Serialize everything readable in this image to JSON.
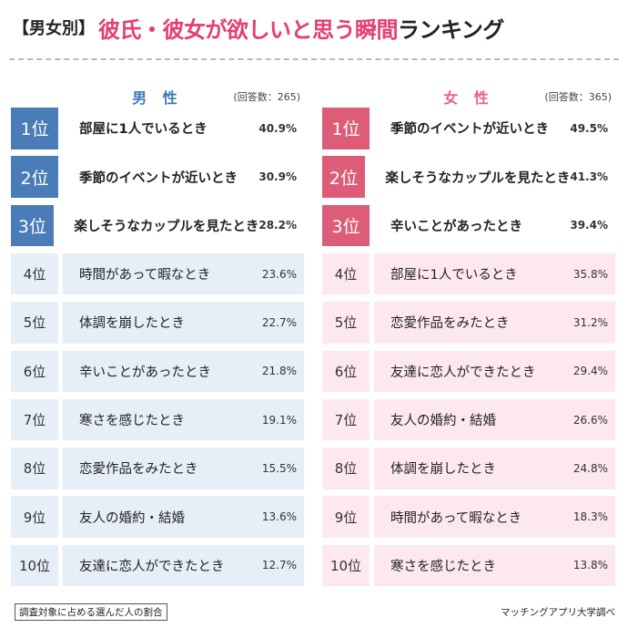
{
  "title": {
    "bracket": "【男女別】",
    "main": "彼氏・彼女が欲しいと思う瞬間",
    "tail": "ランキング"
  },
  "male": {
    "label": "男 性",
    "respondents": "(回答数：265)",
    "highlight_color": "#4a7cb8",
    "row_color": "#e6eef8"
  },
  "female": {
    "label": "女 性",
    "respondents": "(回答数：365)",
    "highlight_color": "#dd5d79",
    "row_color": "#fde8f2"
  },
  "chart_data": [
    {
      "type": "table",
      "title": "男性",
      "unit": "%",
      "rows": [
        {
          "rank": "1位",
          "label": "部屋に1人でいるとき",
          "value": 40.9,
          "display": "40.9%"
        },
        {
          "rank": "2位",
          "label": "季節のイベントが近いとき",
          "value": 30.9,
          "display": "30.9%"
        },
        {
          "rank": "3位",
          "label": "楽しそうなカップルを見たとき",
          "value": 28.2,
          "display": "28.2%"
        },
        {
          "rank": "4位",
          "label": "時間があって暇なとき",
          "value": 23.6,
          "display": "23.6%"
        },
        {
          "rank": "5位",
          "label": "体調を崩したとき",
          "value": 22.7,
          "display": "22.7%"
        },
        {
          "rank": "6位",
          "label": "辛いことがあったとき",
          "value": 21.8,
          "display": "21.8%"
        },
        {
          "rank": "7位",
          "label": "寒さを感じたとき",
          "value": 19.1,
          "display": "19.1%"
        },
        {
          "rank": "8位",
          "label": "恋愛作品をみたとき",
          "value": 15.5,
          "display": "15.5%"
        },
        {
          "rank": "9位",
          "label": "友人の婚約・結婚",
          "value": 13.6,
          "display": "13.6%"
        },
        {
          "rank": "10位",
          "label": "友達に恋人ができたとき",
          "value": 12.7,
          "display": "12.7%"
        }
      ]
    },
    {
      "type": "table",
      "title": "女性",
      "unit": "%",
      "rows": [
        {
          "rank": "1位",
          "label": "季節のイベントが近いとき",
          "value": 49.5,
          "display": "49.5%"
        },
        {
          "rank": "2位",
          "label": "楽しそうなカップルを見たとき",
          "value": 41.3,
          "display": "41.3%"
        },
        {
          "rank": "3位",
          "label": "辛いことがあったとき",
          "value": 39.4,
          "display": "39.4%"
        },
        {
          "rank": "4位",
          "label": "部屋に1人でいるとき",
          "value": 35.8,
          "display": "35.8%"
        },
        {
          "rank": "5位",
          "label": "恋愛作品をみたとき",
          "value": 31.2,
          "display": "31.2%"
        },
        {
          "rank": "6位",
          "label": "友達に恋人ができたとき",
          "value": 29.4,
          "display": "29.4%"
        },
        {
          "rank": "7位",
          "label": "友人の婚約・結婚",
          "value": 26.6,
          "display": "26.6%"
        },
        {
          "rank": "8位",
          "label": "体調を崩したとき",
          "value": 24.8,
          "display": "24.8%"
        },
        {
          "rank": "9位",
          "label": "時間があって暇なとき",
          "value": 18.3,
          "display": "18.3%"
        },
        {
          "rank": "10位",
          "label": "寒さを感じたとき",
          "value": 13.8,
          "display": "13.8%"
        }
      ]
    }
  ],
  "footer": {
    "note": "調査対象に占める選んだ人の割合",
    "source": "マッチングアプリ大学調べ"
  }
}
